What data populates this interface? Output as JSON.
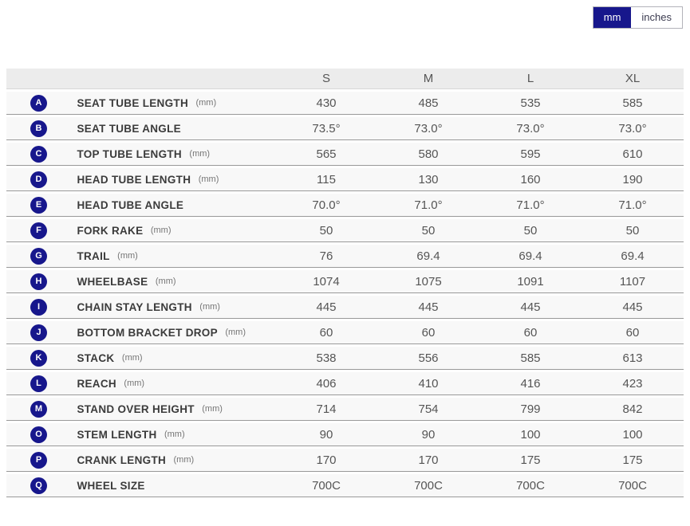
{
  "unit_toggle": {
    "options": [
      {
        "label": "mm",
        "selected": true
      },
      {
        "label": "inches",
        "selected": false
      }
    ]
  },
  "colors": {
    "accent_navy": "#17178c",
    "row_background": "#f8f8f8",
    "header_background": "#ececec",
    "row_divider": "#999999"
  },
  "table": {
    "columns": [
      "S",
      "M",
      "L",
      "XL"
    ],
    "rows": [
      {
        "letter": "A",
        "label": "SEAT TUBE LENGTH",
        "unit": "(mm)",
        "values": [
          "430",
          "485",
          "535",
          "585"
        ]
      },
      {
        "letter": "B",
        "label": "SEAT TUBE ANGLE",
        "unit": "",
        "values": [
          "73.5°",
          "73.0°",
          "73.0°",
          "73.0°"
        ]
      },
      {
        "letter": "C",
        "label": "TOP TUBE LENGTH",
        "unit": "(mm)",
        "values": [
          "565",
          "580",
          "595",
          "610"
        ]
      },
      {
        "letter": "D",
        "label": "HEAD TUBE LENGTH",
        "unit": "(mm)",
        "values": [
          "115",
          "130",
          "160",
          "190"
        ]
      },
      {
        "letter": "E",
        "label": "HEAD TUBE ANGLE",
        "unit": "",
        "values": [
          "70.0°",
          "71.0°",
          "71.0°",
          "71.0°"
        ]
      },
      {
        "letter": "F",
        "label": "FORK RAKE",
        "unit": "(mm)",
        "values": [
          "50",
          "50",
          "50",
          "50"
        ]
      },
      {
        "letter": "G",
        "label": "TRAIL",
        "unit": "(mm)",
        "values": [
          "76",
          "69.4",
          "69.4",
          "69.4"
        ]
      },
      {
        "letter": "H",
        "label": "WHEELBASE",
        "unit": "(mm)",
        "values": [
          "1074",
          "1075",
          "1091",
          "1107"
        ]
      },
      {
        "letter": "I",
        "label": "CHAIN STAY LENGTH",
        "unit": "(mm)",
        "values": [
          "445",
          "445",
          "445",
          "445"
        ]
      },
      {
        "letter": "J",
        "label": "BOTTOM BRACKET DROP",
        "unit": "(mm)",
        "values": [
          "60",
          "60",
          "60",
          "60"
        ]
      },
      {
        "letter": "K",
        "label": "STACK",
        "unit": "(mm)",
        "values": [
          "538",
          "556",
          "585",
          "613"
        ]
      },
      {
        "letter": "L",
        "label": "REACH",
        "unit": "(mm)",
        "values": [
          "406",
          "410",
          "416",
          "423"
        ]
      },
      {
        "letter": "M",
        "label": "STAND OVER HEIGHT",
        "unit": "(mm)",
        "values": [
          "714",
          "754",
          "799",
          "842"
        ]
      },
      {
        "letter": "O",
        "label": "STEM LENGTH",
        "unit": "(mm)",
        "values": [
          "90",
          "90",
          "100",
          "100"
        ]
      },
      {
        "letter": "P",
        "label": "CRANK LENGTH",
        "unit": "(mm)",
        "values": [
          "170",
          "170",
          "175",
          "175"
        ]
      },
      {
        "letter": "Q",
        "label": "WHEEL SIZE",
        "unit": "",
        "values": [
          "700C",
          "700C",
          "700C",
          "700C"
        ]
      }
    ]
  }
}
